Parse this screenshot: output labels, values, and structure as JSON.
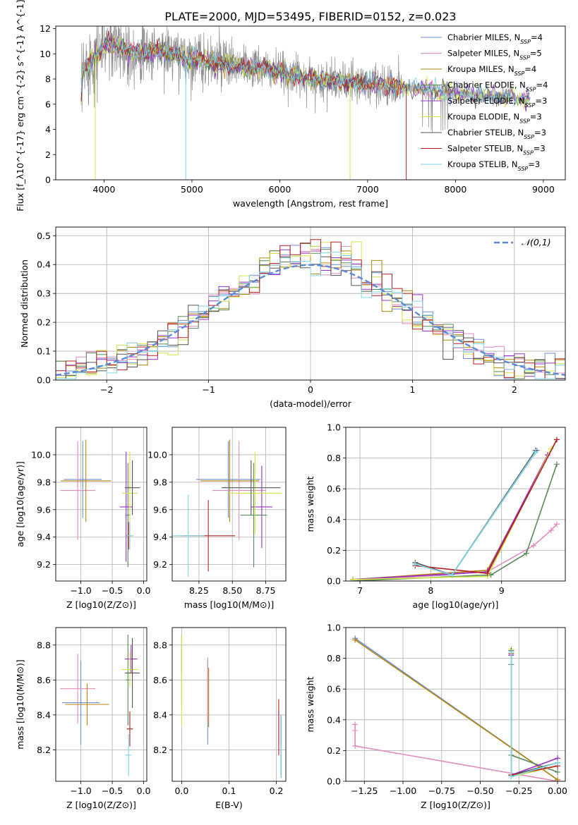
{
  "figure_title": "PLATE=2000, MJD=53495, FIBERID=0152, z=0.023",
  "legend": [
    {
      "label": "Chabrier MILES, N_{SSP}=4",
      "color": "#6b8fd6"
    },
    {
      "label": "Salpeter MILES, N_{SSP}=5",
      "color": "#e58bbd"
    },
    {
      "label": "Kroupa MILES, N_{SSP}=4",
      "color": "#b8860b"
    },
    {
      "label": "Chabrier ELODIE, N_{SSP}=4",
      "color": "#5a8a5a"
    },
    {
      "label": "Salpeter ELODIE, N_{SSP}=3",
      "color": "#9b30c8"
    },
    {
      "label": "Kroupa ELODIE, N_{SSP}=3",
      "color": "#d4e64a"
    },
    {
      "label": "Chabrier STELIB, N_{SSP}=3",
      "color": "#555555"
    },
    {
      "label": "Salpeter STELIB, N_{SSP}=3",
      "color": "#b22222"
    },
    {
      "label": "Kroupa STELIB, N_{SSP}=3",
      "color": "#7fd6e6"
    }
  ],
  "chart_data": [
    {
      "id": "spectrum",
      "type": "line",
      "title": "PLATE=2000, MJD=53495, FIBERID=0152, z=0.023",
      "xlabel": "wavelength [Angstrom, rest frame]",
      "ylabel": "Flux [f_λ10^{-17} erg cm^{-2} s^{-1} A^{-1}]",
      "xlim": [
        3450,
        9250
      ],
      "ylim": [
        0,
        12.2
      ],
      "xticks": [
        4000,
        5000,
        6000,
        7000,
        8000,
        9000
      ],
      "yticks": [
        0,
        2,
        4,
        6,
        8,
        10,
        12
      ],
      "legend_position": "top-right",
      "continuum": [
        [
          3750,
          8.5
        ],
        [
          3850,
          9.6
        ],
        [
          3950,
          10.2
        ],
        [
          4050,
          10.8
        ],
        [
          4200,
          10.5
        ],
        [
          4400,
          10.0
        ],
        [
          4600,
          10.3
        ],
        [
          4800,
          9.9
        ],
        [
          5000,
          9.6
        ],
        [
          5200,
          9.4
        ],
        [
          5500,
          9.0
        ],
        [
          5800,
          8.8
        ],
        [
          6000,
          8.5
        ],
        [
          6300,
          8.1
        ],
        [
          6600,
          7.8
        ],
        [
          6900,
          7.7
        ],
        [
          7200,
          7.5
        ],
        [
          7400,
          7.4
        ],
        [
          7600,
          7.2
        ],
        [
          7800,
          7.0
        ],
        [
          8000,
          6.9
        ],
        [
          8200,
          6.7
        ],
        [
          8400,
          6.6
        ],
        [
          8600,
          6.5
        ],
        [
          8800,
          6.4
        ]
      ]
    },
    {
      "id": "residuals",
      "type": "histogram",
      "xlabel": "(data-model)/error",
      "ylabel": "Normed distribution",
      "xlim": [
        -2.5,
        2.5
      ],
      "ylim": [
        0,
        0.53
      ],
      "xticks": [
        -2,
        -1,
        0,
        1,
        2
      ],
      "yticks": [
        0.0,
        0.1,
        0.2,
        0.3,
        0.4,
        0.5
      ],
      "grid": true,
      "legend": "𝒩(0,1)",
      "legend_position": "top-right",
      "bin_width": 0.1
    },
    {
      "id": "age_vs_Z",
      "type": "scatter",
      "xlabel": "Z [log10(Z/Z⊙)]",
      "ylabel": "age  [log10(age/yr)]",
      "xlim": [
        -1.4,
        0.05
      ],
      "ylim": [
        9.08,
        10.2
      ],
      "xticks": [
        -1.0,
        -0.5,
        0.0
      ],
      "yticks": [
        9.2,
        9.4,
        9.6,
        9.8,
        10.0
      ],
      "grid": true,
      "points": [
        {
          "series": 0,
          "x": -0.97,
          "xerr": 0.3,
          "y": 9.82,
          "yerr": 0.28
        },
        {
          "series": 1,
          "x": -1.05,
          "xerr": 0.28,
          "y": 9.74,
          "yerr": 0.36
        },
        {
          "series": 2,
          "x": -0.92,
          "xerr": 0.4,
          "y": 9.81,
          "yerr": 0.3
        },
        {
          "series": 3,
          "x": -0.25,
          "xerr": 0.04,
          "y": 9.56,
          "yerr": 0.38
        },
        {
          "series": 4,
          "x": -0.28,
          "xerr": 0.1,
          "y": 9.62,
          "yerr": 0.4
        },
        {
          "series": 5,
          "x": -0.22,
          "xerr": 0.12,
          "y": 9.72,
          "yerr": 0.3
        },
        {
          "series": 6,
          "x": -0.18,
          "xerr": 0.12,
          "y": 9.76,
          "yerr": 0.2
        },
        {
          "series": 7,
          "x": -0.24,
          "xerr": 0.05,
          "y": 9.41,
          "yerr": 0.1
        },
        {
          "series": 8,
          "x": -0.22,
          "xerr": 0.06,
          "y": 9.41,
          "yerr": 0.1
        }
      ]
    },
    {
      "id": "age_vs_mass",
      "type": "scatter",
      "xlabel": "mass [log10(M/M⊙)]",
      "ylabel": "",
      "xlim": [
        8.05,
        8.9
      ],
      "ylim": [
        9.08,
        10.2
      ],
      "xticks": [
        8.25,
        8.5,
        8.75
      ],
      "yticks": [
        9.2,
        9.4,
        9.6,
        9.8,
        10.0
      ],
      "grid": true,
      "points": [
        {
          "series": 0,
          "x": 8.47,
          "xerr": 0.24,
          "y": 9.82,
          "yerr": 0.28
        },
        {
          "series": 1,
          "x": 8.55,
          "xerr": 0.2,
          "y": 9.74,
          "yerr": 0.36
        },
        {
          "series": 2,
          "x": 8.48,
          "xerr": 0.22,
          "y": 9.81,
          "yerr": 0.3
        },
        {
          "series": 3,
          "x": 8.66,
          "xerr": 0.1,
          "y": 9.56,
          "yerr": 0.38
        },
        {
          "series": 4,
          "x": 8.72,
          "xerr": 0.08,
          "y": 9.62,
          "yerr": 0.3
        },
        {
          "series": 5,
          "x": 8.67,
          "xerr": 0.2,
          "y": 9.72,
          "yerr": 0.3
        },
        {
          "series": 6,
          "x": 8.64,
          "xerr": 0.22,
          "y": 9.76,
          "yerr": 0.2
        },
        {
          "series": 7,
          "x": 8.32,
          "xerr": 0.2,
          "y": 9.41,
          "yerr": 0.26
        },
        {
          "series": 8,
          "x": 8.17,
          "xerr": 0.12,
          "y": 9.41,
          "yerr": 0.3
        }
      ]
    },
    {
      "id": "weight_vs_age",
      "type": "line",
      "xlabel": "age  [log10(age/yr)]",
      "ylabel": "mass weight",
      "xlim": [
        6.8,
        9.9
      ],
      "ylim": [
        0,
        1.0
      ],
      "xticks": [
        7,
        8,
        9
      ],
      "yticks": [
        0.0,
        0.2,
        0.4,
        0.6,
        0.8,
        1.0
      ],
      "grid": true,
      "series": [
        {
          "series": 0,
          "x": [
            6.9,
            8.3,
            9.5
          ],
          "y": [
            0.01,
            0.04,
            0.85
          ]
        },
        {
          "series": 1,
          "x": [
            6.9,
            8.8,
            9.45,
            9.7,
            9.78
          ],
          "y": [
            0.0,
            0.06,
            0.23,
            0.33,
            0.37
          ]
        },
        {
          "series": 2,
          "x": [
            6.9,
            8.8,
            9.78
          ],
          "y": [
            0.01,
            0.07,
            0.92
          ]
        },
        {
          "series": 3,
          "x": [
            6.9,
            8.85,
            9.35,
            9.78
          ],
          "y": [
            0.0,
            0.04,
            0.18,
            0.76
          ]
        },
        {
          "series": 4,
          "x": [
            6.9,
            8.8,
            9.65
          ],
          "y": [
            0.01,
            0.06,
            0.82
          ]
        },
        {
          "series": 5,
          "x": [
            6.9,
            8.8,
            9.7
          ],
          "y": [
            0.01,
            0.03,
            0.86
          ]
        },
        {
          "series": 6,
          "x": [
            7.78,
            8.3,
            9.48
          ],
          "y": [
            0.12,
            0.04,
            0.85
          ]
        },
        {
          "series": 7,
          "x": [
            7.78,
            8.8,
            9.78
          ],
          "y": [
            0.1,
            0.05,
            0.92
          ]
        },
        {
          "series": 8,
          "x": [
            7.78,
            8.3,
            9.48
          ],
          "y": [
            0.11,
            0.04,
            0.84
          ]
        }
      ]
    },
    {
      "id": "mass_vs_Z",
      "type": "scatter",
      "xlabel": "Z [log10(Z/Z⊙)]",
      "ylabel": "mass [log10(M/M⊙)]",
      "xlim": [
        -1.4,
        0.05
      ],
      "ylim": [
        8.02,
        8.9
      ],
      "xticks": [
        -1.0,
        -0.5,
        0.0
      ],
      "yticks": [
        8.2,
        8.4,
        8.6,
        8.8
      ],
      "grid": true,
      "points": [
        {
          "series": 0,
          "x": -1.0,
          "xerr": 0.3,
          "y": 8.47,
          "yerr": 0.24
        },
        {
          "series": 1,
          "x": -1.05,
          "xerr": 0.28,
          "y": 8.55,
          "yerr": 0.2
        },
        {
          "series": 2,
          "x": -0.9,
          "xerr": 0.35,
          "y": 8.46,
          "yerr": 0.12
        },
        {
          "series": 3,
          "x": -0.25,
          "xerr": 0.04,
          "y": 8.6,
          "yerr": 0.26
        },
        {
          "series": 4,
          "x": -0.2,
          "xerr": 0.1,
          "y": 8.72,
          "yerr": 0.08
        },
        {
          "series": 5,
          "x": -0.22,
          "xerr": 0.14,
          "y": 8.66,
          "yerr": 0.1
        },
        {
          "series": 6,
          "x": -0.18,
          "xerr": 0.12,
          "y": 8.64,
          "yerr": 0.2
        },
        {
          "series": 7,
          "x": -0.22,
          "xerr": 0.05,
          "y": 8.32,
          "yerr": 0.1
        },
        {
          "series": 8,
          "x": -0.24,
          "xerr": 0.05,
          "y": 8.17,
          "yerr": 0.12
        }
      ]
    },
    {
      "id": "mass_vs_ebv",
      "type": "scatter",
      "xlabel": "E(B-V)",
      "ylabel": "",
      "xlim": [
        -0.02,
        0.22
      ],
      "ylim": [
        8.02,
        8.9
      ],
      "xticks": [
        0.0,
        0.1,
        0.2
      ],
      "yticks": [
        8.2,
        8.4,
        8.6,
        8.8
      ],
      "grid": true,
      "points": [
        {
          "series": 0,
          "x": 0.055,
          "y": 8.47,
          "yerr": 0.24
        },
        {
          "series": 1,
          "x": 0.055,
          "y": 8.55,
          "yerr": 0.18
        },
        {
          "series": 2,
          "x": 0.057,
          "y": 8.5,
          "yerr": 0.17
        },
        {
          "series": 3,
          "x": 0.0,
          "y": 8.66,
          "yerr": 0.2
        },
        {
          "series": 4,
          "x": 0.0,
          "y": 8.72,
          "yerr": 0.08
        },
        {
          "series": 5,
          "x": 0.0,
          "y": 8.6,
          "yerr": 0.26
        },
        {
          "series": 6,
          "x": 0.21,
          "y": 8.22,
          "yerr": 0.18
        },
        {
          "series": 7,
          "x": 0.205,
          "y": 8.33,
          "yerr": 0.16
        },
        {
          "series": 8,
          "x": 0.21,
          "y": 8.22,
          "yerr": 0.18
        }
      ]
    },
    {
      "id": "weight_vs_Z",
      "type": "line",
      "xlabel": "Z [log10(Z/Z⊙)]",
      "ylabel": "mass weight",
      "xlim": [
        -1.37,
        0.05
      ],
      "ylim": [
        0,
        1.0
      ],
      "xticks": [
        -1.25,
        -1.0,
        -0.75,
        -0.5,
        -0.25,
        0.0
      ],
      "yticks": [
        0.0,
        0.2,
        0.4,
        0.6,
        0.8,
        1.0
      ],
      "grid": true,
      "series": [
        {
          "series": 0,
          "x": [
            -1.31,
            0.0
          ],
          "y": [
            0.93,
            0.01
          ]
        },
        {
          "series": 1,
          "x": [
            -1.31,
            -1.31,
            -1.31,
            0.0
          ],
          "y": [
            0.37,
            0.33,
            0.23,
            0.0
          ]
        },
        {
          "series": 2,
          "x": [
            -1.31,
            0.0
          ],
          "y": [
            0.92,
            0.01
          ]
        },
        {
          "series": 3,
          "x": [
            -0.3,
            -0.3,
            0.0
          ],
          "y": [
            0.76,
            0.17,
            0.06
          ]
        },
        {
          "series": 4,
          "x": [
            -0.3,
            -0.3,
            0.0
          ],
          "y": [
            0.82,
            0.04,
            0.15
          ]
        },
        {
          "series": 5,
          "x": [
            -0.3,
            -0.3,
            0.0
          ],
          "y": [
            0.86,
            0.03,
            0.1
          ]
        },
        {
          "series": 6,
          "x": [
            -0.3,
            -0.3,
            0.0
          ],
          "y": [
            0.85,
            0.04,
            0.12
          ]
        },
        {
          "series": 7,
          "x": [
            -0.3,
            -0.3,
            0.0
          ],
          "y": [
            0.83,
            0.04,
            0.1
          ]
        },
        {
          "series": 8,
          "x": [
            -0.3,
            -0.3,
            0.0
          ],
          "y": [
            0.84,
            0.03,
            0.12
          ]
        }
      ]
    }
  ]
}
